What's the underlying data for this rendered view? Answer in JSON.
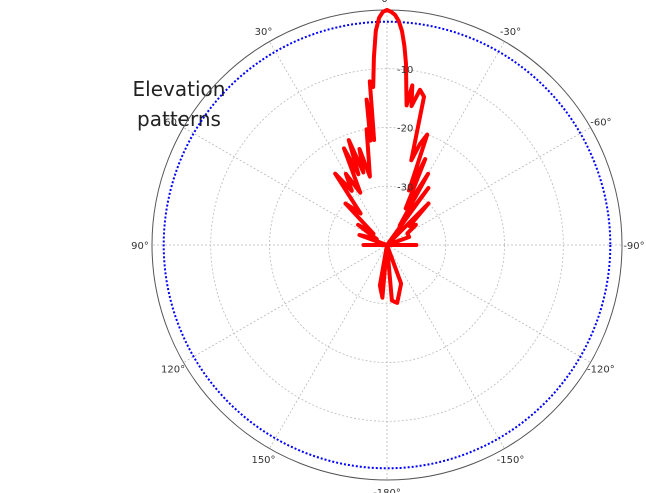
{
  "side_label": {
    "line1": "Elevation",
    "line2": "patterns"
  },
  "colors": {
    "pattern": "#ff0000",
    "reference_circle": "#0000ff",
    "grid": "#bbbbbb",
    "outer_circle": "#555555"
  },
  "chart_data": {
    "type": "polar",
    "theta_zero": "top",
    "theta_direction": "clockwise-negative",
    "angle_ticks": [
      {
        "angle": 0,
        "label": "0°"
      },
      {
        "angle": -30,
        "label": "-30°"
      },
      {
        "angle": -60,
        "label": "-60°"
      },
      {
        "angle": -90,
        "label": "-90°"
      },
      {
        "angle": -120,
        "label": "-120°"
      },
      {
        "angle": -150,
        "label": "-150°"
      },
      {
        "angle": -180,
        "label": "-180°"
      },
      {
        "angle": 150,
        "label": "150°"
      },
      {
        "angle": 120,
        "label": "120°"
      },
      {
        "angle": 90,
        "label": "90°"
      },
      {
        "angle": 60,
        "label": "60°"
      },
      {
        "angle": 30,
        "label": "30°"
      }
    ],
    "r_range_db": [
      -40,
      0
    ],
    "r_ticks": [
      {
        "value": -10,
        "label": "-10"
      },
      {
        "value": -20,
        "label": "-20"
      },
      {
        "value": -30,
        "label": "-30"
      }
    ],
    "reference_level_db": -2,
    "grid": true,
    "pattern": {
      "angles_deg": [
        0,
        -1,
        -2,
        -3,
        -4,
        -5,
        -6,
        -7,
        -8,
        -9,
        -10,
        -12,
        -14,
        -16,
        -18,
        -20,
        -22,
        -24,
        -27,
        -30,
        -33,
        -36,
        -40,
        -45,
        -50,
        -55,
        -60,
        -70,
        -80,
        -90,
        -100,
        -120,
        -140,
        -160,
        -170,
        -175,
        -180,
        175,
        170,
        160,
        140,
        120,
        100,
        90,
        80,
        70,
        60,
        55,
        50,
        45,
        40,
        36,
        33,
        30,
        27,
        24,
        22,
        20,
        18,
        16,
        14,
        12,
        10,
        9,
        8,
        7,
        6,
        5,
        4,
        3,
        2,
        1,
        0
      ],
      "values_db": [
        0,
        -0.3,
        -0.8,
        -1.8,
        -3.5,
        -6,
        -9,
        -13,
        -16,
        -12.5,
        -16,
        -13,
        -14,
        -25,
        -22,
        -20,
        -30,
        -24,
        -33,
        -26,
        -36,
        -28,
        -40,
        -30,
        -35,
        -34,
        -36,
        -36,
        -40,
        -35,
        -40,
        -40,
        -40,
        -33,
        -30,
        -30.5,
        -40,
        -31,
        -33,
        -40,
        -40,
        -40,
        -40,
        -36,
        -40,
        -35,
        -38,
        -34,
        -37,
        -30,
        -33,
        -25,
        -29,
        -26,
        -30,
        -22,
        -27,
        -21,
        -27,
        -23,
        -28,
        -25,
        -20,
        -22,
        -15,
        -22,
        -12,
        -13,
        -8,
        -3.5,
        -1.3,
        -0.3,
        0
      ]
    }
  }
}
